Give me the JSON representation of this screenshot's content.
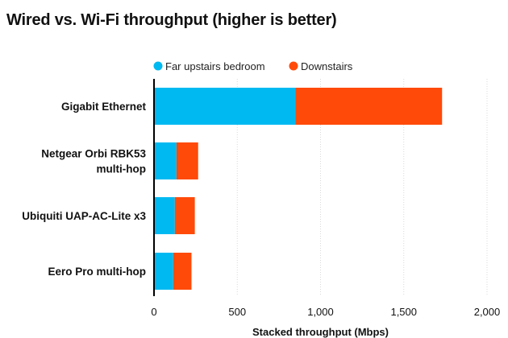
{
  "chart_data": {
    "type": "bar",
    "orientation": "horizontal",
    "stacked": true,
    "title": "Wired vs. Wi-Fi throughput (higher is better)",
    "xlabel": "Stacked throughput (Mbps)",
    "ylabel": "",
    "xlim": [
      0,
      2000
    ],
    "xticks": [
      0,
      500,
      1000,
      1500,
      2000
    ],
    "xtick_labels": [
      "0",
      "500",
      "1,000",
      "1,500",
      "2,000"
    ],
    "grid": true,
    "legend_position": "top",
    "categories": [
      [
        "Gigabit Ethernet"
      ],
      [
        "Netgear Orbi RBK53",
        "multi-hop"
      ],
      [
        "Ubiquiti UAP-AC-Lite x3"
      ],
      [
        "Eero Pro multi-hop"
      ]
    ],
    "series": [
      {
        "name": "Far upstairs bedroom",
        "color": "#00b9f1",
        "values": [
          850,
          135,
          125,
          115
        ]
      },
      {
        "name": "Downstairs",
        "color": "#ff4a09",
        "values": [
          880,
          130,
          120,
          110
        ]
      }
    ]
  }
}
